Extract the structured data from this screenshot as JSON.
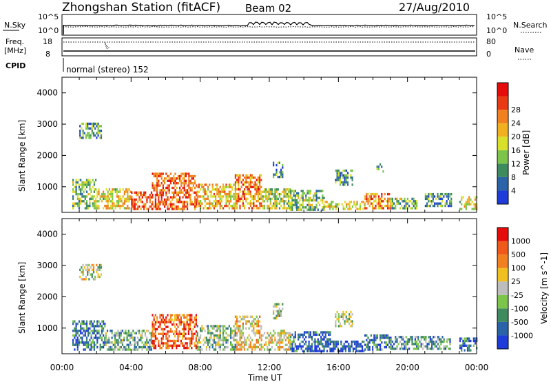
{
  "header": {
    "station": "Zhongshan Station (fitACF)",
    "beam": "Beam 02",
    "date": "27/Aug/2010"
  },
  "top_panels": {
    "nsky_label": "N.Sky",
    "nsky_ticks": [
      "10^5",
      "10^0"
    ],
    "nsearch_label": "N.Search",
    "nsearch_ticks": [
      "10^5",
      "10^0"
    ],
    "freq_label": "Freq.",
    "freq_unit": "[MHz]",
    "freq_ticks": [
      "18",
      "8"
    ],
    "nave_label": "Nave",
    "nave_ticks": [
      "80",
      "0"
    ],
    "cpid_label": "CPID",
    "cpid_text": "normal (stereo) 152"
  },
  "chart_data": [
    {
      "type": "heatmap",
      "name": "power-panel",
      "ylabel": "Slant Range [km]",
      "yticks": [
        1000,
        2000,
        3000,
        4000
      ],
      "ylim": [
        180,
        4500
      ],
      "xlim": [
        0,
        24
      ],
      "colorbar_label": "Power [dB]",
      "colorbar_ticks": [
        "4",
        "8",
        "12",
        "16",
        "20",
        "24",
        "28"
      ],
      "colors": [
        "#1f3bd9",
        "#2a63a8",
        "#3f8a5f",
        "#7cc44a",
        "#d9e02a",
        "#f0b020",
        "#f08020",
        "#e83a14",
        "#e60c0c"
      ],
      "regions": [
        {
          "t0": 0.6,
          "t1": 2.0,
          "r0": 300,
          "r1": 1250,
          "level": 0.35
        },
        {
          "t0": 2.0,
          "t1": 4.0,
          "r0": 300,
          "r1": 950,
          "level": 0.55
        },
        {
          "t0": 4.0,
          "t1": 5.2,
          "r0": 300,
          "r1": 850,
          "level": 0.8
        },
        {
          "t0": 5.2,
          "t1": 7.8,
          "r0": 300,
          "r1": 1450,
          "level": 0.78
        },
        {
          "t0": 7.8,
          "t1": 10.0,
          "r0": 300,
          "r1": 1100,
          "level": 0.6
        },
        {
          "t0": 10.0,
          "t1": 11.5,
          "r0": 300,
          "r1": 1400,
          "level": 0.7
        },
        {
          "t0": 11.5,
          "t1": 13.2,
          "r0": 300,
          "r1": 950,
          "level": 0.45
        },
        {
          "t0": 13.2,
          "t1": 15.2,
          "r0": 300,
          "r1": 900,
          "level": 0.4
        },
        {
          "t0": 15.2,
          "t1": 17.5,
          "r0": 300,
          "r1": 550,
          "level": 0.5
        },
        {
          "t0": 17.5,
          "t1": 19.0,
          "r0": 300,
          "r1": 800,
          "level": 0.7
        },
        {
          "t0": 19.0,
          "t1": 20.5,
          "r0": 350,
          "r1": 650,
          "level": 0.35
        },
        {
          "t0": 21.0,
          "t1": 22.5,
          "r0": 400,
          "r1": 800,
          "level": 0.3
        },
        {
          "t0": 23.0,
          "t1": 24.0,
          "r0": 300,
          "r1": 700,
          "level": 0.55
        },
        {
          "t0": 1.0,
          "t1": 2.3,
          "r0": 2600,
          "r1": 3050,
          "level": 0.3
        },
        {
          "t0": 12.2,
          "t1": 12.8,
          "r0": 1300,
          "r1": 1800,
          "level": 0.25
        },
        {
          "t0": 15.8,
          "t1": 16.8,
          "r0": 1100,
          "r1": 1550,
          "level": 0.3
        },
        {
          "t0": 18.2,
          "t1": 18.6,
          "r0": 1500,
          "r1": 1750,
          "level": 0.25
        }
      ]
    },
    {
      "type": "heatmap",
      "name": "velocity-panel",
      "ylabel": "Slant Range [km]",
      "yticks": [
        1000,
        2000,
        3000,
        4000
      ],
      "ylim": [
        180,
        4500
      ],
      "xlim": [
        0,
        24
      ],
      "xticks": [
        "00:00",
        "04:00",
        "08:00",
        "12:00",
        "16:00",
        "20:00",
        "00:00"
      ],
      "xlabel": "Time UT",
      "colorbar_label": "Velocity [m s^-1]",
      "colorbar_ticks": [
        "1000",
        "500",
        "100",
        "25",
        "-25",
        "-100",
        "-500",
        "-1000"
      ],
      "colors": [
        "#1f3bd9",
        "#2a63a8",
        "#3f8a5f",
        "#7cc44a",
        "#bdbdbd",
        "#f0c020",
        "#f08020",
        "#ef5a1c",
        "#e60c0c"
      ],
      "regions": [
        {
          "t0": 0.6,
          "t1": 2.5,
          "r0": 300,
          "r1": 1250,
          "level": 0.2
        },
        {
          "t0": 2.5,
          "t1": 5.2,
          "r0": 300,
          "r1": 950,
          "level": 0.35
        },
        {
          "t0": 5.2,
          "t1": 6.5,
          "r0": 400,
          "r1": 1450,
          "level": 0.85
        },
        {
          "t0": 6.5,
          "t1": 7.8,
          "r0": 400,
          "r1": 1450,
          "level": 0.8
        },
        {
          "t0": 7.8,
          "t1": 10.0,
          "r0": 300,
          "r1": 1100,
          "level": 0.4
        },
        {
          "t0": 10.0,
          "t1": 11.5,
          "r0": 300,
          "r1": 1400,
          "level": 0.6
        },
        {
          "t0": 11.5,
          "t1": 13.2,
          "r0": 300,
          "r1": 950,
          "level": 0.55
        },
        {
          "t0": 13.2,
          "t1": 15.5,
          "r0": 300,
          "r1": 900,
          "level": 0.15
        },
        {
          "t0": 15.5,
          "t1": 17.5,
          "r0": 300,
          "r1": 600,
          "level": 0.1
        },
        {
          "t0": 17.5,
          "t1": 19.0,
          "r0": 300,
          "r1": 800,
          "level": 0.15
        },
        {
          "t0": 19.0,
          "t1": 22.5,
          "r0": 350,
          "r1": 750,
          "level": 0.3
        },
        {
          "t0": 23.0,
          "t1": 24.0,
          "r0": 300,
          "r1": 700,
          "level": 0.15
        },
        {
          "t0": 1.0,
          "t1": 2.3,
          "r0": 2600,
          "r1": 3050,
          "level": 0.5
        },
        {
          "t0": 12.2,
          "t1": 12.8,
          "r0": 1300,
          "r1": 1800,
          "level": 0.5
        },
        {
          "t0": 15.8,
          "t1": 16.8,
          "r0": 1100,
          "r1": 1550,
          "level": 0.45
        }
      ]
    }
  ]
}
